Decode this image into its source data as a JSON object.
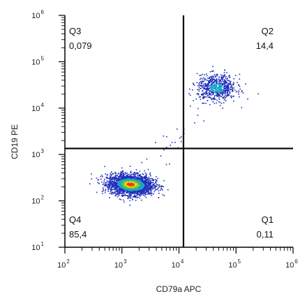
{
  "chart_data": {
    "type": "scatter",
    "subtype": "flow-cytometry density dot plot",
    "xlabel": "CD79a APC",
    "ylabel": "CD19 PE",
    "x_scale": "log",
    "y_scale": "log",
    "xlim": [
      100,
      1000000
    ],
    "ylim": [
      10,
      1000000
    ],
    "x_tick_labels": [
      {
        "base": "10",
        "exp": "2"
      },
      {
        "base": "10",
        "exp": "3"
      },
      {
        "base": "10",
        "exp": "4"
      },
      {
        "base": "10",
        "exp": "5"
      },
      {
        "base": "10",
        "exp": "6"
      }
    ],
    "y_tick_labels": [
      {
        "base": "10",
        "exp": "1"
      },
      {
        "base": "10",
        "exp": "2"
      },
      {
        "base": "10",
        "exp": "3"
      },
      {
        "base": "10",
        "exp": "4"
      },
      {
        "base": "10",
        "exp": "5"
      },
      {
        "base": "10",
        "exp": "6"
      }
    ],
    "gates": {
      "x": 12000,
      "y": 1350
    },
    "quadrants": [
      {
        "name": "Q3",
        "value": "0,079",
        "position": "top-left"
      },
      {
        "name": "Q2",
        "value": "14,4",
        "position": "top-right"
      },
      {
        "name": "Q4",
        "value": "85,4",
        "position": "bottom-left"
      },
      {
        "name": "Q1",
        "value": "0,11",
        "position": "bottom-right"
      }
    ],
    "populations": [
      {
        "quadrant": "Q4",
        "center_x": 1400,
        "center_y": 230,
        "events": 2600,
        "color_scale": "density"
      },
      {
        "quadrant": "Q2",
        "center_x": 45000,
        "center_y": 28000,
        "events": 700,
        "color_scale": "density"
      }
    ],
    "grid": false,
    "colors": {
      "gate_line": "#000000",
      "axes": "#000000",
      "low_density": "#1f2fb8",
      "mid_density": "#1fa3c9",
      "high_density_1": "#6cc92a",
      "high_density_2": "#f2d11a",
      "peak_density": "#e43d12"
    }
  }
}
